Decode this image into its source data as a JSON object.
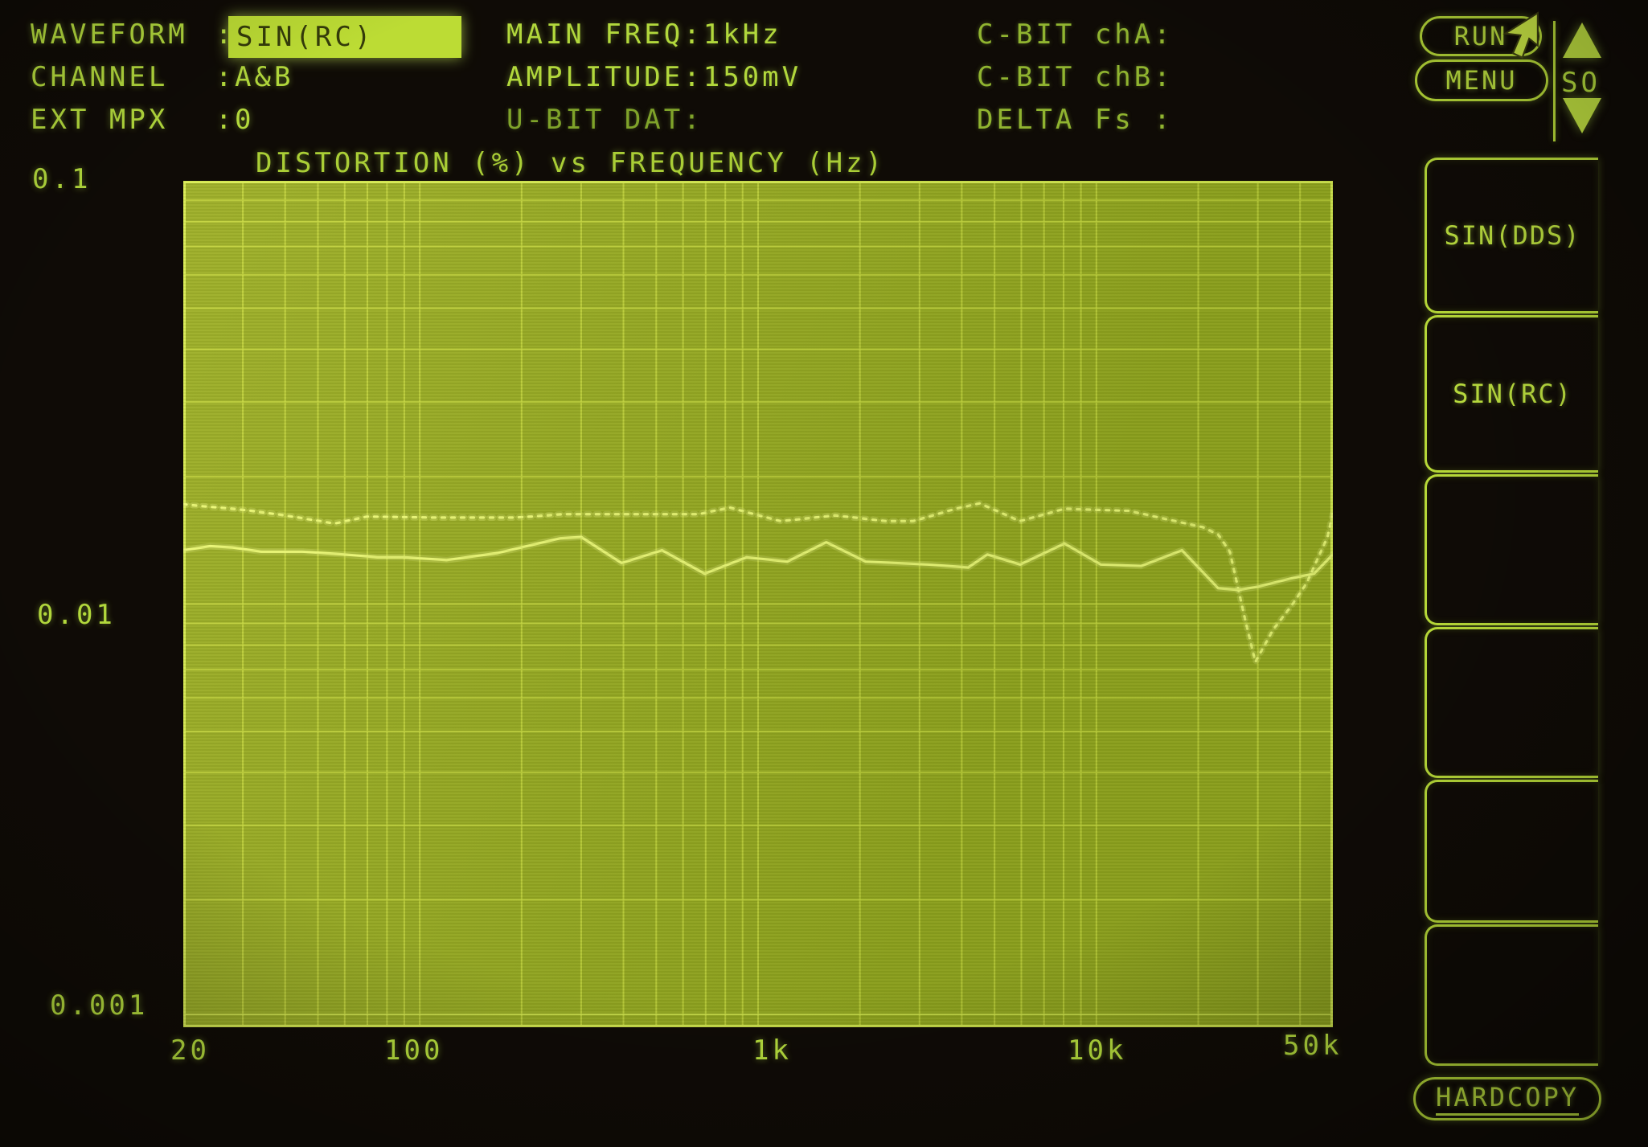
{
  "palette": {
    "background": "#0f0b06",
    "text_green": "#b2d83c",
    "dim_green": "#7fa32a",
    "plot_fill": "#95a820",
    "grid_line": "#c6d83e",
    "trace": "#eefb78",
    "highlight_fill": "#bcdc34",
    "highlight_text": "#343b0a",
    "outline": "#b6d838"
  },
  "status": {
    "left": [
      {
        "label": "WAVEFORM",
        "colon": ":",
        "value": "SIN(RC)"
      },
      {
        "label": "CHANNEL",
        "colon": ":",
        "value": "A&B"
      },
      {
        "label": "EXT MPX",
        "colon": ":",
        "value": "0"
      }
    ],
    "mid": [
      {
        "label": "MAIN FREQ",
        "colon": ":",
        "value": "1kHz"
      },
      {
        "label": "AMPLITUDE",
        "colon": ":",
        "value": "150mV"
      },
      {
        "label": "U-BIT DAT",
        "colon": ":",
        "value": ""
      }
    ],
    "right": [
      {
        "label": "C-BIT chA",
        "colon": ":",
        "value": ""
      },
      {
        "label": "C-BIT chB",
        "colon": ":",
        "value": ""
      },
      {
        "label": "DELTA Fs",
        "colon": " :",
        "value": ""
      }
    ]
  },
  "chart_data": {
    "type": "line",
    "title": "DISTORTION (%) vs FREQUENCY (Hz)",
    "xlabel": "FREQUENCY (Hz)",
    "ylabel": "DISTORTION (%)",
    "x_scale": "log",
    "y_scale": "log",
    "x_range": [
      20,
      50000
    ],
    "y_range": [
      0.001,
      0.1
    ],
    "x_tick_labels": [
      "20",
      "100",
      "1k",
      "10k",
      "50k"
    ],
    "y_tick_labels": [
      "0.1",
      "0.01",
      "0.001"
    ],
    "grid": "log minor gridlines on both axes",
    "legend": "none",
    "series": [
      {
        "name": "upper-dotted-trace",
        "style": "dotted",
        "points": [
          [
            20,
            0.0172
          ],
          [
            30,
            0.0167
          ],
          [
            40,
            0.0162
          ],
          [
            56,
            0.0155
          ],
          [
            70,
            0.0161
          ],
          [
            110,
            0.016
          ],
          [
            190,
            0.016
          ],
          [
            265,
            0.0163
          ],
          [
            430,
            0.0163
          ],
          [
            665,
            0.0163
          ],
          [
            825,
            0.0169
          ],
          [
            1165,
            0.0157
          ],
          [
            1690,
            0.0162
          ],
          [
            2390,
            0.0157
          ],
          [
            2870,
            0.0157
          ],
          [
            3840,
            0.0168
          ],
          [
            4520,
            0.0173
          ],
          [
            5940,
            0.0157
          ],
          [
            8050,
            0.0168
          ],
          [
            12500,
            0.0166
          ],
          [
            16500,
            0.0158
          ],
          [
            20600,
            0.0152
          ],
          [
            22900,
            0.0146
          ],
          [
            24800,
            0.0133
          ],
          [
            27600,
            0.0091
          ],
          [
            29500,
            0.0073
          ],
          [
            33300,
            0.0087
          ],
          [
            37700,
            0.0099
          ],
          [
            41800,
            0.0112
          ],
          [
            44900,
            0.0127
          ],
          [
            48200,
            0.0144
          ],
          [
            50000,
            0.0164
          ]
        ]
      },
      {
        "name": "lower-solid-trace",
        "style": "solid",
        "points": [
          [
            20,
            0.0134
          ],
          [
            24,
            0.0137
          ],
          [
            28,
            0.0136
          ],
          [
            34,
            0.0133
          ],
          [
            45,
            0.0133
          ],
          [
            60,
            0.0131
          ],
          [
            75,
            0.0129
          ],
          [
            90,
            0.0129
          ],
          [
            120,
            0.0127
          ],
          [
            170,
            0.0132
          ],
          [
            260,
            0.0143
          ],
          [
            300,
            0.0144
          ],
          [
            395,
            0.0125
          ],
          [
            520,
            0.0134
          ],
          [
            695,
            0.0118
          ],
          [
            925,
            0.0129
          ],
          [
            1220,
            0.0126
          ],
          [
            1590,
            0.014
          ],
          [
            2080,
            0.0126
          ],
          [
            3175,
            0.0124
          ],
          [
            4180,
            0.0122
          ],
          [
            4760,
            0.0131
          ],
          [
            5950,
            0.0124
          ],
          [
            8050,
            0.0139
          ],
          [
            10300,
            0.0124
          ],
          [
            13550,
            0.0123
          ],
          [
            17900,
            0.0134
          ],
          [
            22900,
            0.0109
          ],
          [
            26300,
            0.0108
          ],
          [
            30200,
            0.011
          ],
          [
            37700,
            0.0115
          ],
          [
            44000,
            0.0118
          ],
          [
            50000,
            0.0131
          ]
        ]
      }
    ]
  },
  "side_panel": {
    "run_label": "RUN",
    "menu_label": "MENU",
    "so_label": "SO",
    "softkeys": [
      {
        "label": "SIN(DDS)"
      },
      {
        "label": "SIN(RC)"
      },
      {
        "label": ""
      },
      {
        "label": ""
      },
      {
        "label": ""
      },
      {
        "label": ""
      }
    ],
    "hardcopy_label": "HARDCOPY"
  }
}
